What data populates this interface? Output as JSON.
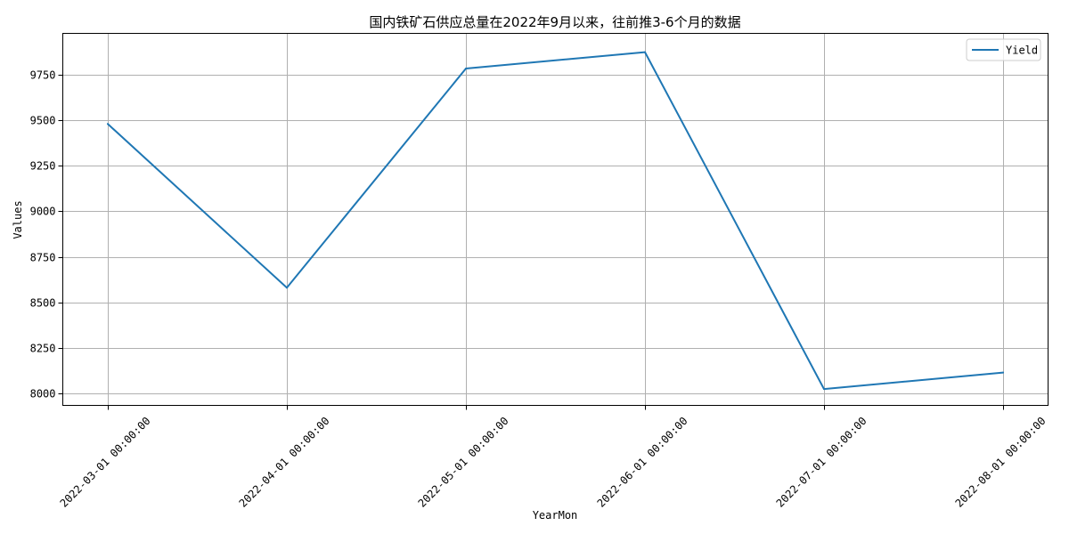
{
  "chart_data": {
    "type": "line",
    "title": "国内铁矿石供应总量在2022年9月以来，往前推3-6个月的数据",
    "xlabel": "YearMon",
    "ylabel": "Values",
    "categories": [
      "2022-03-01 00:00:00",
      "2022-04-01 00:00:00",
      "2022-05-01 00:00:00",
      "2022-06-01 00:00:00",
      "2022-07-01 00:00:00",
      "2022-08-01 00:00:00"
    ],
    "series": [
      {
        "name": "Yield",
        "color": "#1f77b4",
        "values": [
          9478,
          8580,
          9782,
          9872,
          8025,
          8115
        ]
      }
    ],
    "yticks": [
      8000,
      8250,
      8500,
      8750,
      9000,
      9250,
      9500,
      9750
    ],
    "ylim": [
      7935,
      9975
    ],
    "grid": true,
    "legend": "top-right"
  }
}
